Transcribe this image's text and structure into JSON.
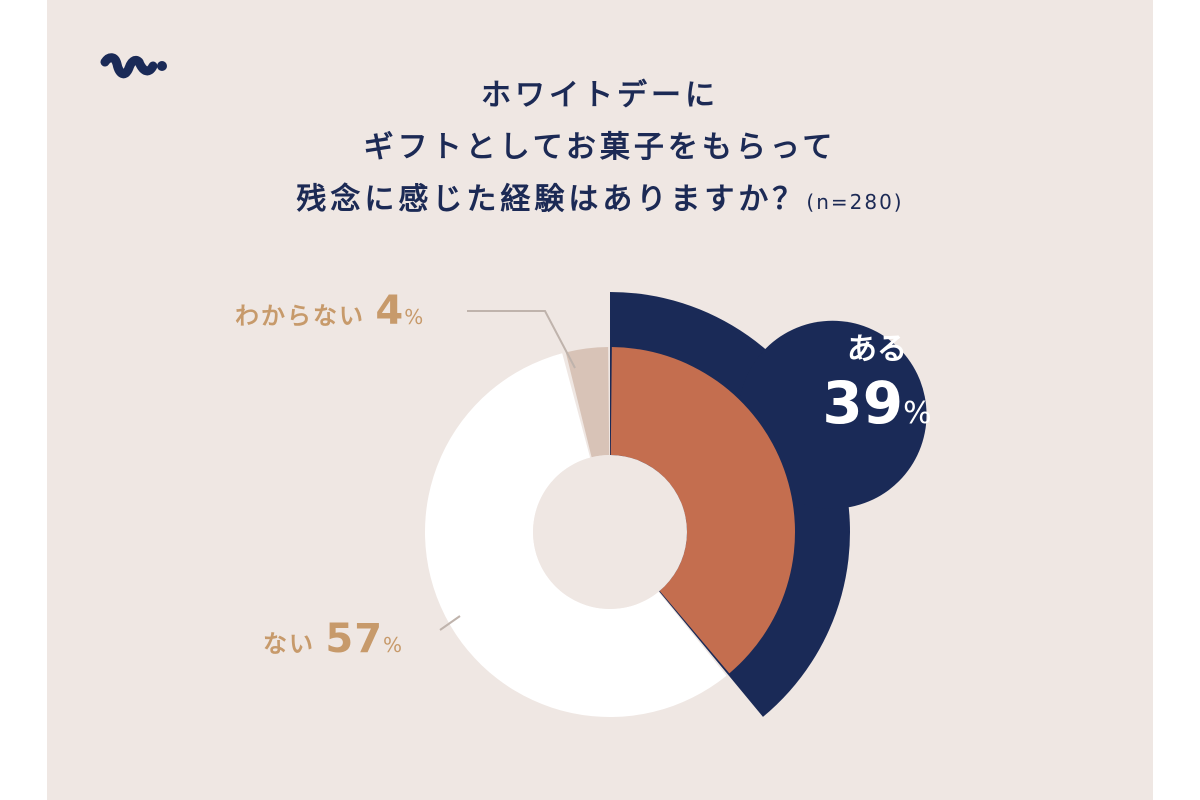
{
  "title_lines": [
    "ホワイトデーに",
    "ギフトとしてお菓子をもらって",
    "残念に感じた経験はありますか？"
  ],
  "sample_size": "(n=280)",
  "chart_data": {
    "type": "pie",
    "variant": "donut",
    "title": "ホワイトデーにギフトとしてお菓子をもらって残念に感じた経験はありますか？(n=280)",
    "slices": [
      {
        "label": "ある",
        "value": 39,
        "pct_text": "39",
        "color": "#c46e4f",
        "highlight_color": "#1a2a57"
      },
      {
        "label": "ない",
        "value": 57,
        "pct_text": "57",
        "color": "#ffffff"
      },
      {
        "label": "わからない",
        "value": 4,
        "pct_text": "4",
        "color": "#d8c3b7"
      }
    ],
    "unit": "%",
    "legend": "none"
  },
  "colors": {
    "background": "#efe7e3",
    "navy": "#1a2a57",
    "label": "#c79a6b",
    "leader": "#bfb3ac"
  }
}
